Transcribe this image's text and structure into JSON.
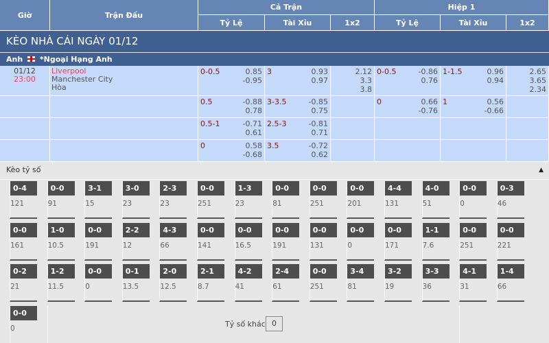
{
  "header": {
    "gio": "Giờ",
    "tran_dau": "Trận Đấu",
    "ca_tran": "Cả Trận",
    "hiep1": "Hiệp 1",
    "ty_le": "Tỷ Lệ",
    "tai_xiu": "Tài Xỉu",
    "x12": "1x2"
  },
  "title": "KÈO NHÀ CÁI NGÀY 01/12",
  "league": {
    "country": "Anh",
    "name": "*Ngoại Hạng Anh",
    "flag_icon": "england-flag"
  },
  "match": {
    "date": "01/12",
    "time": "23:00",
    "home": "Liverpool",
    "away": "Manchester City",
    "draw": "Hòa"
  },
  "rows": [
    {
      "ft_hc": "0-0.5",
      "ft_hc_o1": "0.85",
      "ft_hc_o2": "-0.95",
      "ft_ou": "3",
      "ft_ou_o1": "0.93",
      "ft_ou_o2": "0.97",
      "ft_1": "2.12",
      "ft_x": "3.3",
      "ft_2": "3.8",
      "h1_hc": "0-0.5",
      "h1_hc_o1": "-0.86",
      "h1_hc_o2": "0.76",
      "h1_ou": "1-1.5",
      "h1_ou_o1": "0.96",
      "h1_ou_o2": "0.94",
      "h1_1": "2.65",
      "h1_x": "3.65",
      "h1_2": "2.34"
    },
    {
      "ft_hc": "0.5",
      "ft_hc_o1": "-0.88",
      "ft_hc_o2": "0.78",
      "ft_ou": "3-3.5",
      "ft_ou_o1": "-0.85",
      "ft_ou_o2": "0.75",
      "h1_hc": "0",
      "h1_hc_o1": "0.66",
      "h1_hc_o2": "-0.76",
      "h1_ou": "1",
      "h1_ou_o1": "0.56",
      "h1_ou_o2": "-0.66"
    },
    {
      "ft_hc": "0.5-1",
      "ft_hc_o1": "-0.71",
      "ft_hc_o2": "0.61",
      "ft_ou": "2.5-3",
      "ft_ou_o1": "-0.81",
      "ft_ou_o2": "0.71"
    },
    {
      "ft_hc": "0",
      "ft_hc_o1": "0.58",
      "ft_hc_o2": "-0.68",
      "ft_ou": "3.5",
      "ft_ou_o1": "-0.72",
      "ft_ou_o2": "0.62"
    }
  ],
  "correct_score": {
    "title": "Kèo tỷ số",
    "collapse_icon": "caret-up",
    "tiles": [
      [
        [
          "0-4",
          "121"
        ],
        [
          "0-0",
          "91"
        ],
        [
          "3-1",
          "15"
        ],
        [
          "3-0",
          "23"
        ],
        [
          "2-3",
          "23"
        ],
        [
          "0-0",
          "251"
        ],
        [
          "1-3",
          "23"
        ],
        [
          "0-0",
          "81"
        ],
        [
          "0-0",
          "251"
        ],
        [
          "0-0",
          "201"
        ],
        [
          "4-4",
          "131"
        ],
        [
          "4-0",
          "51"
        ],
        [
          "0-0",
          "0"
        ],
        [
          "0-3",
          "46"
        ]
      ],
      [
        [
          "0-0",
          "161"
        ],
        [
          "1-0",
          "10.5"
        ],
        [
          "0-0",
          "191"
        ],
        [
          "2-2",
          "12"
        ],
        [
          "4-3",
          "66"
        ],
        [
          "0-0",
          "141"
        ],
        [
          "0-0",
          "16.5"
        ],
        [
          "0-0",
          "191"
        ],
        [
          "0-0",
          "131"
        ],
        [
          "0-0",
          "0"
        ],
        [
          "0-0",
          "171"
        ],
        [
          "1-1",
          "7.6"
        ],
        [
          "0-0",
          "251"
        ],
        [
          "0-0",
          "221"
        ]
      ],
      [
        [
          "0-2",
          "21"
        ],
        [
          "1-2",
          "11.5"
        ],
        [
          "0-0",
          "0"
        ],
        [
          "0-1",
          "13.5"
        ],
        [
          "2-0",
          "12.5"
        ],
        [
          "2-1",
          "8.7"
        ],
        [
          "4-2",
          "41"
        ],
        [
          "2-4",
          "61"
        ],
        [
          "0-0",
          "251"
        ],
        [
          "3-4",
          "81"
        ],
        [
          "3-2",
          "19"
        ],
        [
          "3-3",
          "36"
        ],
        [
          "4-1",
          "31"
        ],
        [
          "1-4",
          "66"
        ]
      ],
      [
        [
          "0-0",
          "0"
        ]
      ]
    ],
    "other_label": "Tỷ số khác",
    "other_value": "0"
  }
}
